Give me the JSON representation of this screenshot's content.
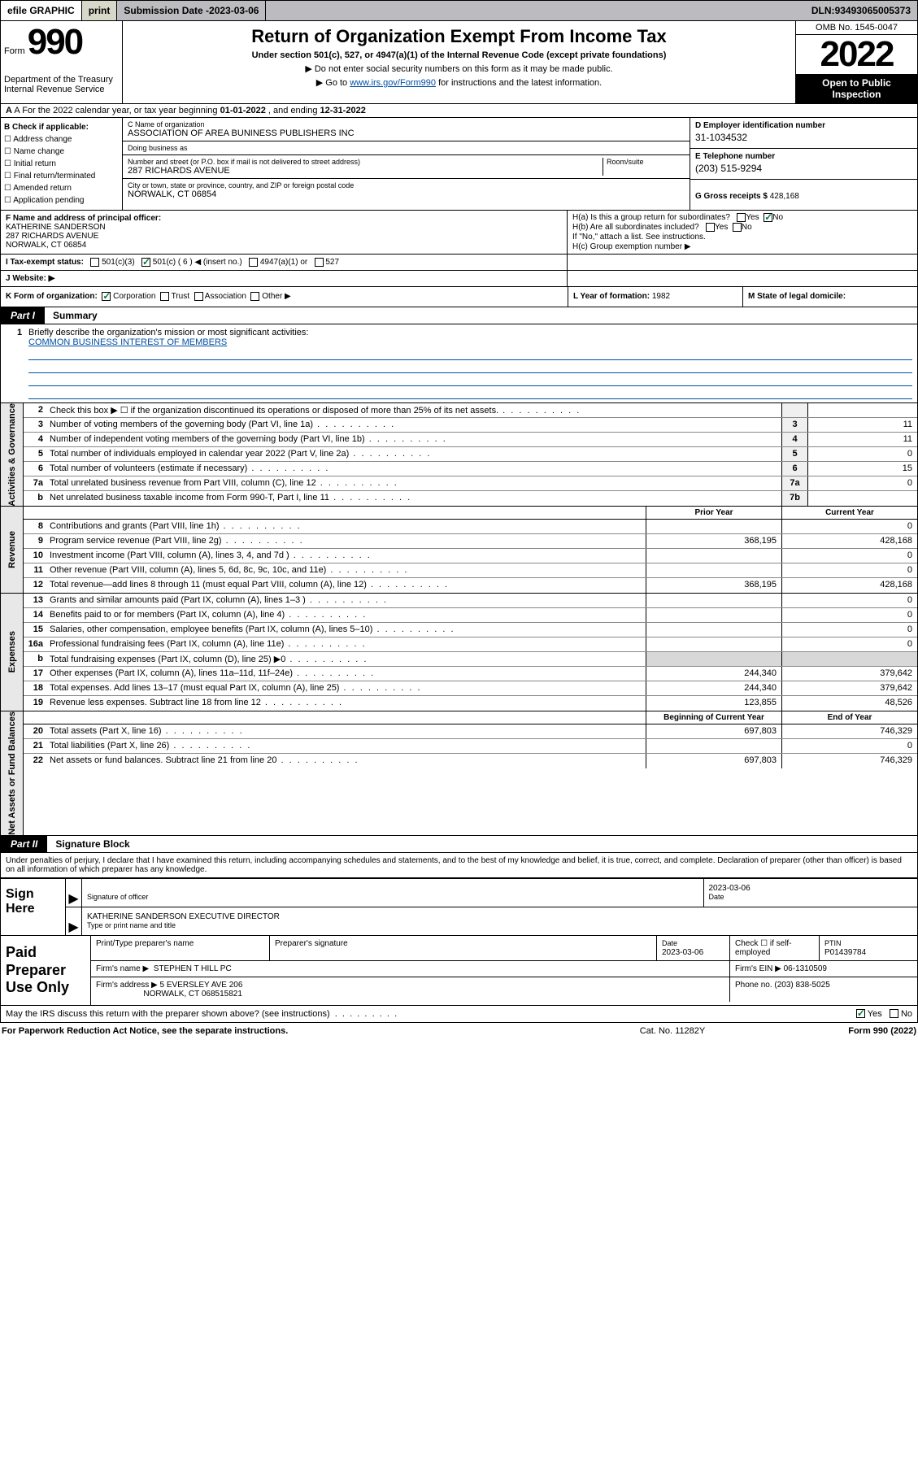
{
  "topbar": {
    "efile": "efile GRAPHIC",
    "print": "print",
    "sub_label": "Submission Date - ",
    "sub_date": "2023-03-06",
    "dln_label": "DLN: ",
    "dln": "93493065005373"
  },
  "header": {
    "form_word": "Form",
    "form_no": "990",
    "dept": "Department of the Treasury\nInternal Revenue Service",
    "title": "Return of Organization Exempt From Income Tax",
    "sub": "Under section 501(c), 527, or 4947(a)(1) of the Internal Revenue Code (except private foundations)",
    "note1": "▶ Do not enter social security numbers on this form as it may be made public.",
    "note2_pre": "▶ Go to ",
    "note2_link": "www.irs.gov/Form990",
    "note2_post": " for instructions and the latest information.",
    "omb": "OMB No. 1545-0047",
    "year": "2022",
    "inspect": "Open to Public Inspection"
  },
  "row_a": {
    "text_pre": "A For the 2022 calendar year, or tax year beginning ",
    "begin": "01-01-2022",
    "mid": " , and ending ",
    "end": "12-31-2022"
  },
  "checks": {
    "label": "B Check if applicable:",
    "items": [
      "Address change",
      "Name change",
      "Initial return",
      "Final return/terminated",
      "Amended return",
      "Application pending"
    ]
  },
  "org": {
    "c_label": "C Name of organization",
    "name": "ASSOCIATION OF AREA BUNINESS PUBLISHERS INC",
    "dba_label": "Doing business as",
    "dba": "",
    "addr_label": "Number and street (or P.O. box if mail is not delivered to street address)",
    "addr": "287 RICHARDS AVENUE",
    "room_label": "Room/suite",
    "room": "",
    "city_label": "City or town, state or province, country, and ZIP or foreign postal code",
    "city": "NORWALK, CT  06854"
  },
  "right": {
    "d_label": "D Employer identification number",
    "ein": "31-1034532",
    "e_label": "E Telephone number",
    "phone": "(203) 515-9294",
    "g_label": "G Gross receipts $ ",
    "gross": "428,168"
  },
  "f": {
    "label": "F Name and address of principal officer:",
    "name": "KATHERINE SANDERSON",
    "addr1": "287 RICHARDS AVENUE",
    "addr2": "NORWALK, CT  06854"
  },
  "h": {
    "a": "H(a)  Is this a group return for subordinates?",
    "a_yes": "Yes",
    "a_no": "No",
    "b": "H(b)  Are all subordinates included?",
    "b_note": "If \"No,\" attach a list. See instructions.",
    "c": "H(c)  Group exemption number ▶"
  },
  "i": {
    "label": "I  Tax-exempt status:",
    "o1": "501(c)(3)",
    "o2": "501(c) ( 6 ) ◀ (insert no.)",
    "o3": "4947(a)(1) or",
    "o4": "527"
  },
  "j": {
    "label": "J  Website: ▶",
    "val": ""
  },
  "k": {
    "label": "K Form of organization:",
    "o1": "Corporation",
    "o2": "Trust",
    "o3": "Association",
    "o4": "Other ▶"
  },
  "l": {
    "label": "L Year of formation: ",
    "val": "1982"
  },
  "m": {
    "label": "M State of legal domicile:",
    "val": ""
  },
  "part1": {
    "tab": "Part I",
    "title": "Summary"
  },
  "mission": {
    "q": "Briefly describe the organization's mission or most significant activities:",
    "a": "COMMON BUSINESS INTEREST OF MEMBERS"
  },
  "sections": {
    "gov": "Activities & Governance",
    "rev": "Revenue",
    "exp": "Expenses",
    "net": "Net Assets or Fund Balances"
  },
  "lines_gov": [
    {
      "n": "2",
      "d": "Check this box ▶ ☐  if the organization discontinued its operations or disposed of more than 25% of its net assets.",
      "c": "",
      "v": ""
    },
    {
      "n": "3",
      "d": "Number of voting members of the governing body (Part VI, line 1a)",
      "c": "3",
      "v": "11"
    },
    {
      "n": "4",
      "d": "Number of independent voting members of the governing body (Part VI, line 1b)",
      "c": "4",
      "v": "11"
    },
    {
      "n": "5",
      "d": "Total number of individuals employed in calendar year 2022 (Part V, line 2a)",
      "c": "5",
      "v": "0"
    },
    {
      "n": "6",
      "d": "Total number of volunteers (estimate if necessary)",
      "c": "6",
      "v": "15"
    },
    {
      "n": "7a",
      "d": "Total unrelated business revenue from Part VIII, column (C), line 12",
      "c": "7a",
      "v": "0"
    },
    {
      "n": "b",
      "d": "Net unrelated business taxable income from Form 990-T, Part I, line 11",
      "c": "7b",
      "v": ""
    }
  ],
  "two_hdr": {
    "prior": "Prior Year",
    "curr": "Current Year"
  },
  "lines_rev": [
    {
      "n": "8",
      "d": "Contributions and grants (Part VIII, line 1h)",
      "p": "",
      "c": "0"
    },
    {
      "n": "9",
      "d": "Program service revenue (Part VIII, line 2g)",
      "p": "368,195",
      "c": "428,168"
    },
    {
      "n": "10",
      "d": "Investment income (Part VIII, column (A), lines 3, 4, and 7d )",
      "p": "",
      "c": "0"
    },
    {
      "n": "11",
      "d": "Other revenue (Part VIII, column (A), lines 5, 6d, 8c, 9c, 10c, and 11e)",
      "p": "",
      "c": "0"
    },
    {
      "n": "12",
      "d": "Total revenue—add lines 8 through 11 (must equal Part VIII, column (A), line 12)",
      "p": "368,195",
      "c": "428,168"
    }
  ],
  "lines_exp": [
    {
      "n": "13",
      "d": "Grants and similar amounts paid (Part IX, column (A), lines 1–3 )",
      "p": "",
      "c": "0"
    },
    {
      "n": "14",
      "d": "Benefits paid to or for members (Part IX, column (A), line 4)",
      "p": "",
      "c": "0"
    },
    {
      "n": "15",
      "d": "Salaries, other compensation, employee benefits (Part IX, column (A), lines 5–10)",
      "p": "",
      "c": "0"
    },
    {
      "n": "16a",
      "d": "Professional fundraising fees (Part IX, column (A), line 11e)",
      "p": "",
      "c": "0"
    },
    {
      "n": "b",
      "d": "Total fundraising expenses (Part IX, column (D), line 25) ▶0",
      "p": "grey",
      "c": "grey"
    },
    {
      "n": "17",
      "d": "Other expenses (Part IX, column (A), lines 11a–11d, 11f–24e)",
      "p": "244,340",
      "c": "379,642"
    },
    {
      "n": "18",
      "d": "Total expenses. Add lines 13–17 (must equal Part IX, column (A), line 25)",
      "p": "244,340",
      "c": "379,642"
    },
    {
      "n": "19",
      "d": "Revenue less expenses. Subtract line 18 from line 12",
      "p": "123,855",
      "c": "48,526"
    }
  ],
  "net_hdr": {
    "b": "Beginning of Current Year",
    "e": "End of Year"
  },
  "lines_net": [
    {
      "n": "20",
      "d": "Total assets (Part X, line 16)",
      "p": "697,803",
      "c": "746,329"
    },
    {
      "n": "21",
      "d": "Total liabilities (Part X, line 26)",
      "p": "",
      "c": "0"
    },
    {
      "n": "22",
      "d": "Net assets or fund balances. Subtract line 21 from line 20",
      "p": "697,803",
      "c": "746,329"
    }
  ],
  "part2": {
    "tab": "Part II",
    "title": "Signature Block"
  },
  "decl": "Under penalties of perjury, I declare that I have examined this return, including accompanying schedules and statements, and to the best of my knowledge and belief, it is true, correct, and complete. Declaration of preparer (other than officer) is based on all information of which preparer has any knowledge.",
  "sign": {
    "here": "Sign Here",
    "sig_label": "Signature of officer",
    "date": "2023-03-06",
    "date_label": "Date",
    "name": "KATHERINE SANDERSON  EXECUTIVE DIRECTOR",
    "name_label": "Type or print name and title"
  },
  "prep": {
    "label": "Paid Preparer Use Only",
    "h1": "Print/Type preparer's name",
    "h2": "Preparer's signature",
    "h3": "Date",
    "h4": "Check ☐ if self-employed",
    "h5": "PTIN",
    "date": "2023-03-06",
    "ptin": "P01439784",
    "firm_l": "Firm's name   ▶",
    "firm": "STEPHEN T HILL PC",
    "ein_l": "Firm's EIN ▶",
    "ein": "06-1310509",
    "addr_l": "Firm's address ▶",
    "addr": "5 EVERSLEY AVE 206",
    "city": "NORWALK, CT  068515821",
    "ph_l": "Phone no. ",
    "ph": "(203) 838-5025"
  },
  "footer_q": {
    "q": "May the IRS discuss this return with the preparer shown above? (see instructions)",
    "yes": "Yes",
    "no": "No"
  },
  "bottom": {
    "l": "For Paperwork Reduction Act Notice, see the separate instructions.",
    "m": "Cat. No. 11282Y",
    "r": "Form 990 (2022)"
  }
}
